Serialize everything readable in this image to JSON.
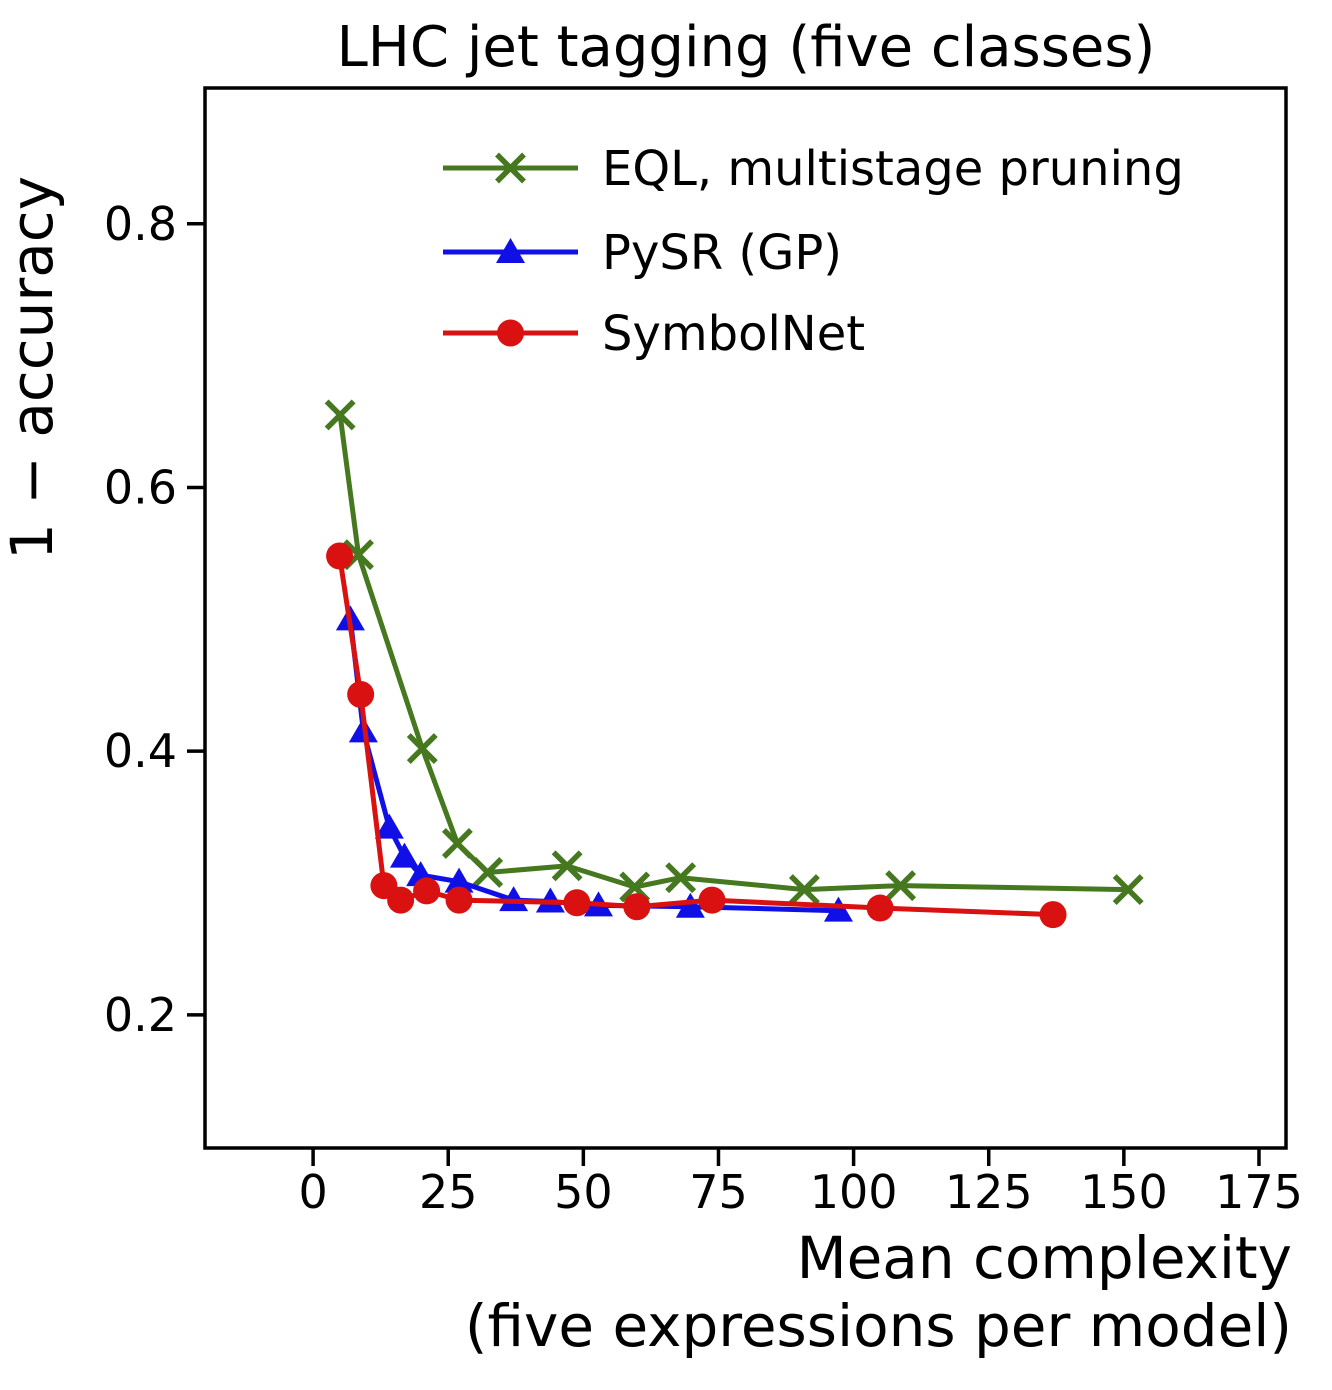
{
  "title": "LHC jet tagging (five classes)",
  "ylabel": "1 − accuracy",
  "xlabel_line1": "Mean complexity",
  "xlabel_line2": "(five expressions per model)",
  "chart_data": {
    "type": "line",
    "title": "LHC jet tagging (five classes)",
    "xlabel": "Mean complexity (five expressions per model)",
    "ylabel": "1 − accuracy",
    "xlim": [
      -20,
      180
    ],
    "ylim": [
      0.099,
      0.903
    ],
    "x_ticks": [
      0,
      25,
      50,
      75,
      100,
      125,
      150,
      175
    ],
    "y_ticks": [
      0.2,
      0.4,
      0.6,
      0.8
    ],
    "grid": false,
    "legend_position": "upper center, frameless, inside axes",
    "axis_color": "#000000",
    "series": [
      {
        "name": "EQL, multistage pruning",
        "color": "#45781f",
        "marker": "x",
        "points": [
          [
            5.0,
            0.655
          ],
          [
            8.4,
            0.549
          ],
          [
            20.2,
            0.402
          ],
          [
            26.7,
            0.33
          ],
          [
            32.3,
            0.308
          ],
          [
            47.0,
            0.313
          ],
          [
            59.5,
            0.297
          ],
          [
            68.0,
            0.304
          ],
          [
            90.9,
            0.295
          ],
          [
            108.7,
            0.298
          ],
          [
            150.8,
            0.295
          ]
        ]
      },
      {
        "name": "PySR (GP)",
        "color": "#1010e6",
        "marker": "triangle-up",
        "points": [
          [
            6.9,
            0.5
          ],
          [
            9.3,
            0.415
          ],
          [
            14.1,
            0.342
          ],
          [
            16.9,
            0.32
          ],
          [
            19.9,
            0.306
          ],
          [
            27.0,
            0.301
          ],
          [
            37.1,
            0.287
          ],
          [
            43.9,
            0.286
          ],
          [
            52.8,
            0.283
          ],
          [
            69.8,
            0.282
          ],
          [
            97.2,
            0.279
          ]
        ]
      },
      {
        "name": "SymbolNet",
        "color": "#d91111",
        "marker": "circle",
        "points": [
          [
            4.9,
            0.548
          ],
          [
            8.8,
            0.443
          ],
          [
            13.1,
            0.298
          ],
          [
            16.2,
            0.287
          ],
          [
            21.0,
            0.294
          ],
          [
            27.0,
            0.287
          ],
          [
            48.8,
            0.285
          ],
          [
            59.9,
            0.282
          ],
          [
            73.8,
            0.287
          ],
          [
            104.9,
            0.281
          ],
          [
            136.9,
            0.276
          ]
        ]
      }
    ]
  }
}
